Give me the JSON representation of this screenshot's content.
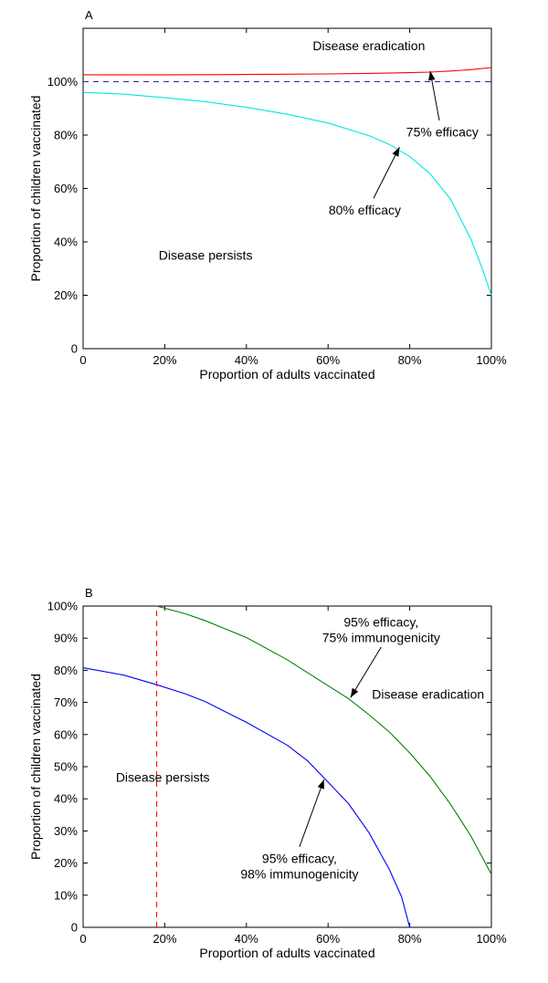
{
  "chart_data": [
    {
      "type": "line",
      "panel_label": "A",
      "xlabel": "Proportion of adults vaccinated",
      "ylabel": "Proportion of children vaccinated",
      "xlim": [
        0,
        100
      ],
      "ylim": [
        0,
        120
      ],
      "x_ticks": [
        {
          "value": 0,
          "label": "0"
        },
        {
          "value": 20,
          "label": "20%"
        },
        {
          "value": 40,
          "label": "40%"
        },
        {
          "value": 60,
          "label": "60%"
        },
        {
          "value": 80,
          "label": "80%"
        },
        {
          "value": 100,
          "label": "100%"
        }
      ],
      "y_ticks": [
        {
          "value": 0,
          "label": "0"
        },
        {
          "value": 20,
          "label": "20%"
        },
        {
          "value": 40,
          "label": "40%"
        },
        {
          "value": 60,
          "label": "60%"
        },
        {
          "value": 80,
          "label": "80%"
        },
        {
          "value": 100,
          "label": "100%"
        }
      ],
      "series": [
        {
          "name": "75% efficacy",
          "color": "#ff0000",
          "dash": "",
          "x": [
            0,
            20,
            40,
            50,
            60,
            70,
            80,
            85,
            90,
            95,
            100
          ],
          "y": [
            102.6,
            102.6,
            102.7,
            102.8,
            102.9,
            103.1,
            103.4,
            103.6,
            104.0,
            104.5,
            105.3
          ]
        },
        {
          "name": "80% efficacy",
          "color": "#00e5e5",
          "dash": "",
          "x": [
            0,
            10,
            20,
            30,
            40,
            50,
            60,
            70,
            75,
            80,
            85,
            90,
            95,
            98,
            100
          ],
          "y": [
            96,
            95.3,
            94,
            92.5,
            90.4,
            87.8,
            84.5,
            79.8,
            76.5,
            72,
            65.5,
            56,
            41,
            29,
            20
          ]
        },
        {
          "name": "threshold",
          "color": "#2b2b8a",
          "dash": "6,5",
          "x": [
            0,
            100
          ],
          "y": [
            100,
            100
          ]
        }
      ],
      "annotations": [
        {
          "text": "Disease eradication",
          "x": 70,
          "y": 113.5
        },
        {
          "text": "75% efficacy",
          "x": 88,
          "y": 81.2,
          "arrow_to": [
            85,
            104
          ]
        },
        {
          "text": "80% efficacy",
          "x": 69,
          "y": 52,
          "arrow_to": [
            77.5,
            75.5
          ]
        },
        {
          "text": "Disease persists",
          "x": 30,
          "y": 35
        }
      ]
    },
    {
      "type": "line",
      "panel_label": "B",
      "xlabel": "Proportion of adults vaccinated",
      "ylabel": "Proportion of children vaccinated",
      "xlim": [
        0,
        100
      ],
      "ylim": [
        0,
        100
      ],
      "x_ticks": [
        {
          "value": 0,
          "label": "0"
        },
        {
          "value": 20,
          "label": "20%"
        },
        {
          "value": 40,
          "label": "40%"
        },
        {
          "value": 60,
          "label": "60%"
        },
        {
          "value": 80,
          "label": "80%"
        },
        {
          "value": 100,
          "label": "100%"
        }
      ],
      "y_ticks": [
        {
          "value": 0,
          "label": "0"
        },
        {
          "value": 10,
          "label": "10%"
        },
        {
          "value": 20,
          "label": "20%"
        },
        {
          "value": 30,
          "label": "30%"
        },
        {
          "value": 40,
          "label": "40%"
        },
        {
          "value": 50,
          "label": "50%"
        },
        {
          "value": 60,
          "label": "60%"
        },
        {
          "value": 70,
          "label": "70%"
        },
        {
          "value": 80,
          "label": "80%"
        },
        {
          "value": 90,
          "label": "90%"
        },
        {
          "value": 100,
          "label": "100%"
        }
      ],
      "series": [
        {
          "name": "95% efficacy, 75% immunogenicity",
          "color": "#008000",
          "dash": "",
          "x": [
            18,
            25,
            30,
            40,
            50,
            60,
            65,
            70,
            75,
            80,
            85,
            90,
            95,
            100
          ],
          "y": [
            100,
            97.6,
            95.4,
            90.2,
            83.3,
            75.2,
            71.2,
            66.2,
            60.8,
            54.3,
            47,
            38.3,
            28.4,
            16.5
          ]
        },
        {
          "name": "95% efficacy, 98% immunogenicity",
          "color": "#0000ff",
          "dash": "",
          "x": [
            0,
            10,
            18,
            25,
            30,
            40,
            50,
            55,
            60,
            65,
            70,
            75,
            78,
            80
          ],
          "y": [
            80.8,
            78.5,
            75.5,
            72.7,
            70.2,
            63.8,
            56.7,
            51.8,
            45.2,
            38.5,
            29.5,
            18,
            9.5,
            0
          ]
        },
        {
          "name": "cutoff",
          "color": "#ff0000",
          "dash": "6,5",
          "x": [
            18,
            18
          ],
          "y": [
            0,
            100
          ]
        }
      ],
      "annotations": [
        {
          "lines": [
            "95% efficacy,",
            "75% immunogenicity"
          ],
          "x": 73,
          "y": 92.6,
          "arrow_to": [
            65.5,
            71.5
          ]
        },
        {
          "text": "Disease eradication",
          "x": 84.5,
          "y": 72.6
        },
        {
          "text": "Disease persists",
          "x": 19.5,
          "y": 46.7
        },
        {
          "lines": [
            "95% efficacy,",
            "98% immunogenicity"
          ],
          "x": 53,
          "y": 19.1,
          "arrow_to": [
            59,
            46
          ]
        }
      ]
    }
  ]
}
